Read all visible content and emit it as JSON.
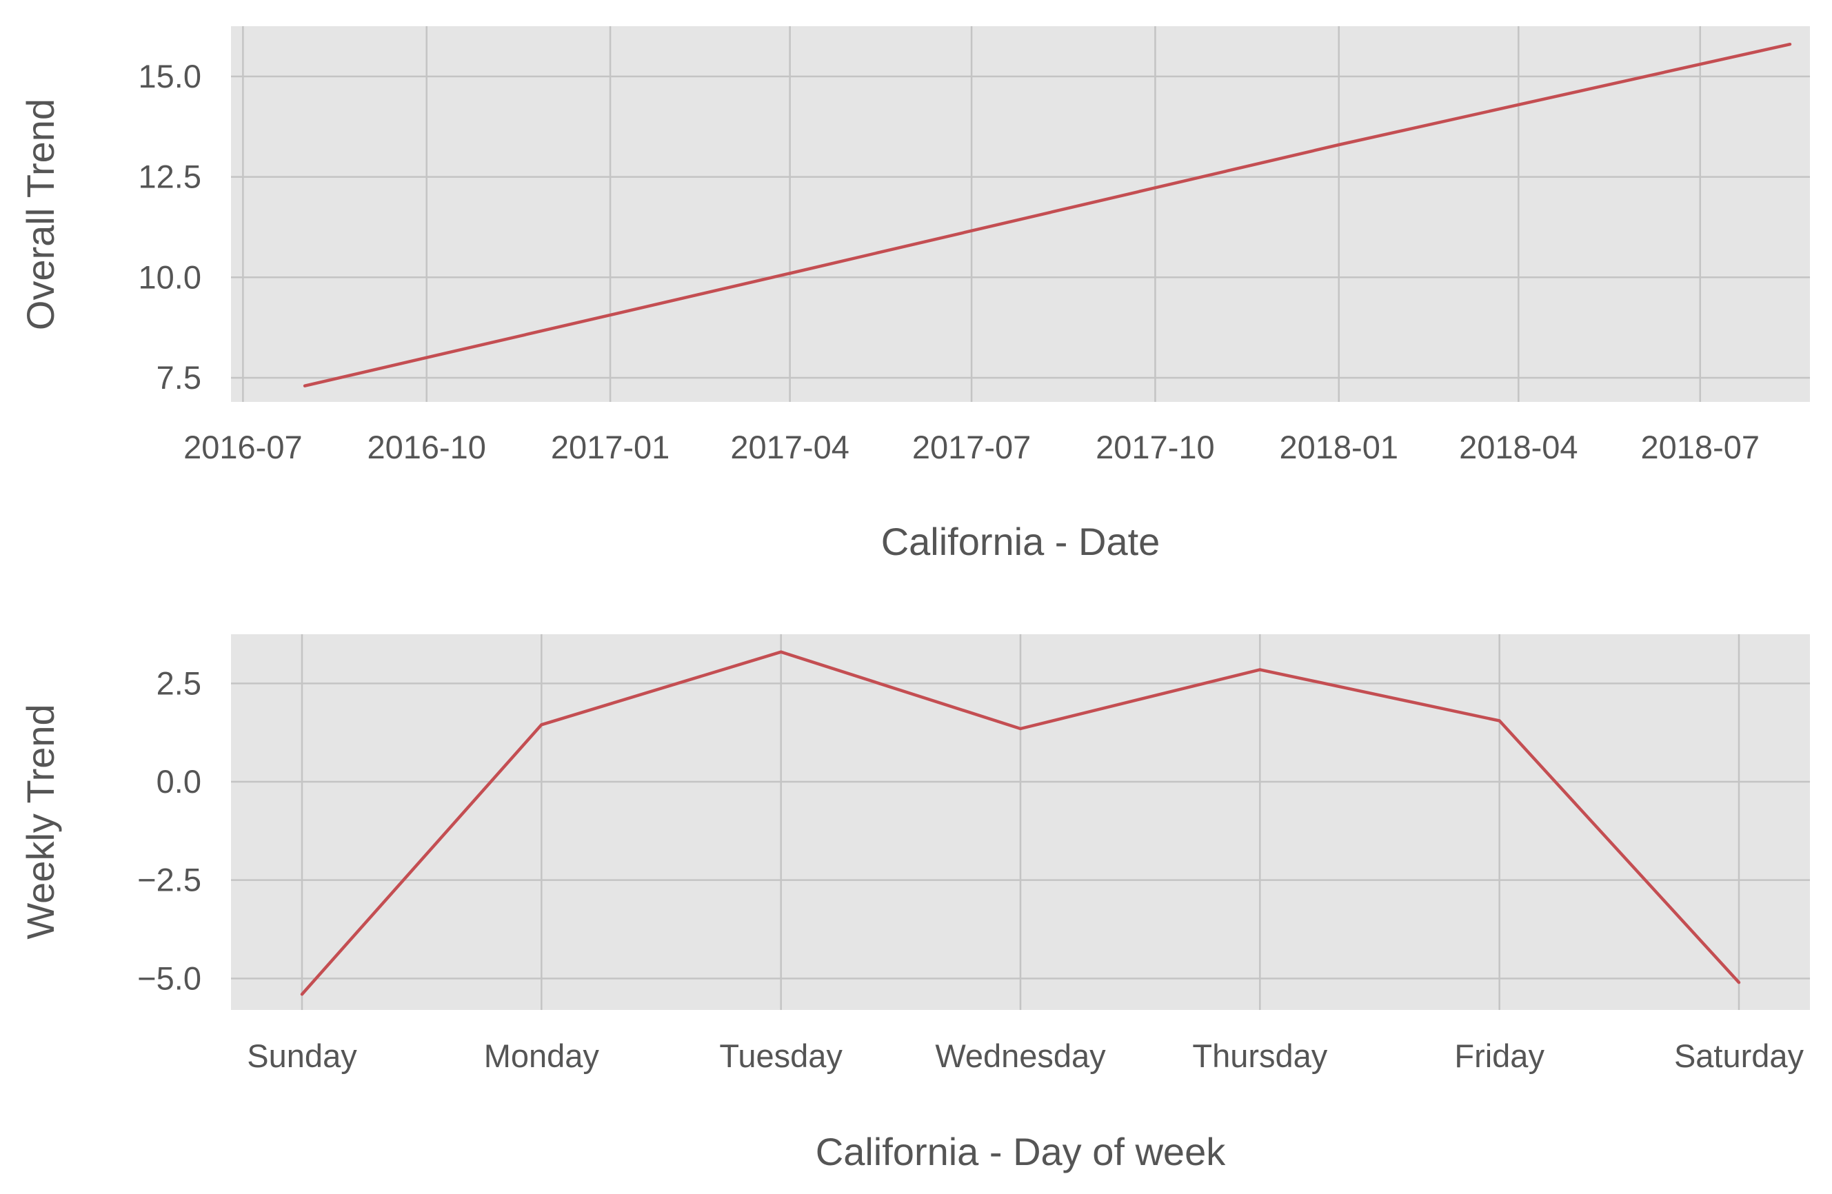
{
  "chart_data": [
    {
      "type": "line",
      "title": "",
      "xlabel": "California - Date",
      "ylabel": "Overall Trend",
      "x_type": "date",
      "xlim": [
        "2016-06-25",
        "2018-08-25"
      ],
      "ylim": [
        6.9,
        16.25
      ],
      "x_ticks": [
        "2016-07-01",
        "2016-10-01",
        "2017-01-01",
        "2017-04-01",
        "2017-07-01",
        "2017-10-01",
        "2018-01-01",
        "2018-04-01",
        "2018-07-01"
      ],
      "x_tick_labels": [
        "2016-07",
        "2016-10",
        "2017-01",
        "2017-04",
        "2017-07",
        "2017-10",
        "2018-01",
        "2018-04",
        "2018-07"
      ],
      "y_ticks": [
        7.5,
        10.0,
        12.5,
        15.0
      ],
      "y_tick_labels": [
        "7.5",
        "10.0",
        "12.5",
        "15.0"
      ],
      "grid": true,
      "series": [
        {
          "x": [
            "2016-08-01",
            "2017-04-01",
            "2018-01-01",
            "2018-08-15"
          ],
          "y": [
            7.3,
            10.1,
            13.3,
            15.8
          ]
        }
      ],
      "color": "#c44e52"
    },
    {
      "type": "line",
      "title": "",
      "xlabel": "California - Day of week",
      "ylabel": "Weekly Trend",
      "categories": [
        "Sunday",
        "Monday",
        "Tuesday",
        "Wednesday",
        "Thursday",
        "Friday",
        "Saturday"
      ],
      "ylim": [
        -5.8,
        3.75
      ],
      "y_ticks": [
        -5.0,
        -2.5,
        0.0,
        2.5
      ],
      "y_tick_labels": [
        "−5.0",
        "−2.5",
        "0.0",
        "2.5"
      ],
      "grid": true,
      "series": [
        {
          "values": [
            -5.4,
            1.45,
            3.3,
            1.35,
            2.85,
            1.55,
            -5.1
          ]
        }
      ],
      "color": "#c44e52"
    }
  ]
}
